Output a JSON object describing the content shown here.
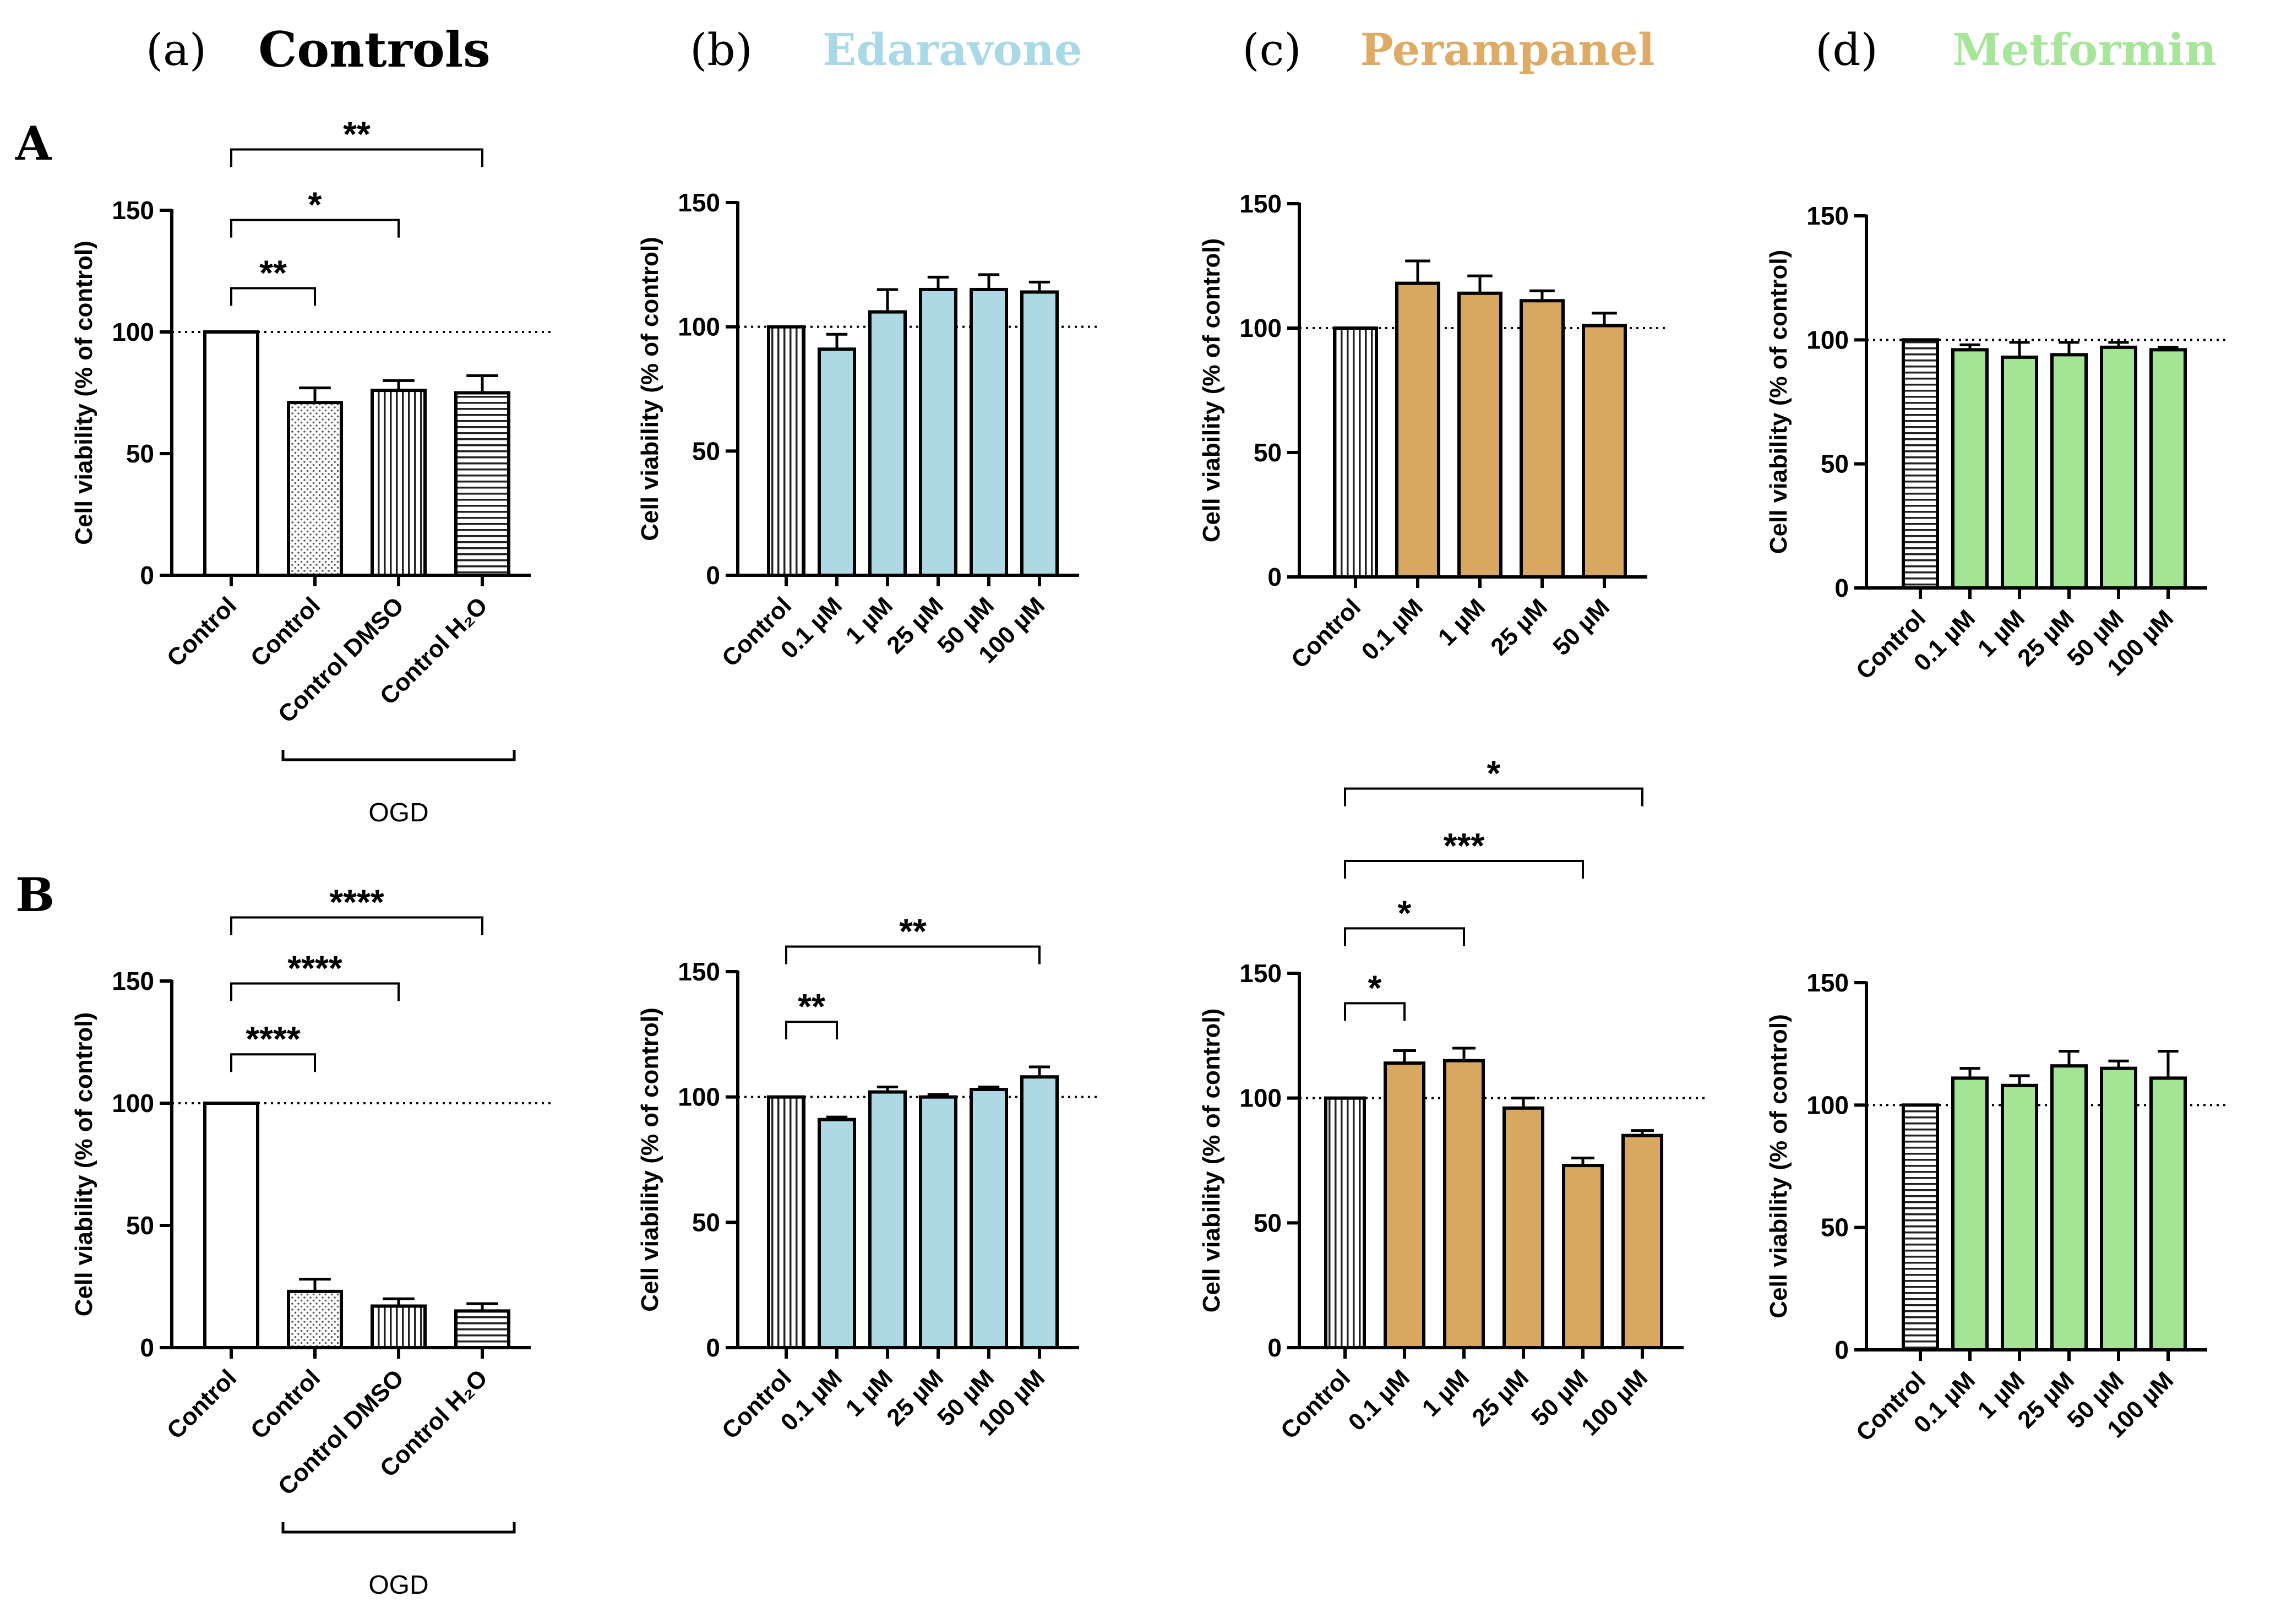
{
  "figure": {
    "row_labels": [
      "A",
      "B"
    ],
    "column_headers": [
      {
        "letter": "(a)",
        "title": "Controls",
        "color": "#000000"
      },
      {
        "letter": "(b)",
        "title": "Edaravone",
        "color": "#a9d8e6"
      },
      {
        "letter": "(c)",
        "title": "Perampanel",
        "color": "#deab66"
      },
      {
        "letter": "(d)",
        "title": "Metformin",
        "color": "#a7e59a"
      }
    ],
    "group_bracket_label": "OGD"
  },
  "chart_data": [
    {
      "id": "A-a",
      "type": "bar",
      "ylabel": "Cell viability (% of control)",
      "ylim": [
        0,
        150
      ],
      "yticks": [
        0,
        50,
        100,
        150
      ],
      "reference_line": 100,
      "categories": [
        "Control",
        "Control",
        "Control DMSO",
        "Control H₂O"
      ],
      "values": [
        100,
        71,
        76,
        75
      ],
      "errors": [
        0,
        6,
        4,
        7
      ],
      "fills": [
        "#ffffff",
        "dots",
        "vlines",
        "hlines"
      ],
      "group_bracket": {
        "from": 1,
        "to": 3,
        "label": "OGD"
      },
      "significance": [
        {
          "from": 0,
          "to": 1,
          "label": "**",
          "y": 118
        },
        {
          "from": 0,
          "to": 2,
          "label": "*",
          "y": 146
        },
        {
          "from": 0,
          "to": 3,
          "label": "**",
          "y": 175
        }
      ]
    },
    {
      "id": "A-b",
      "type": "bar",
      "ylabel": "Cell viability (% of control)",
      "ylim": [
        0,
        150
      ],
      "yticks": [
        0,
        50,
        100,
        150
      ],
      "reference_line": 100,
      "categories": [
        "Control",
        "0.1 µM",
        "1 µM",
        "25 µM",
        "50 µM",
        "100 µM"
      ],
      "values": [
        100,
        91,
        106,
        115,
        115,
        114
      ],
      "errors": [
        0,
        6,
        9,
        5,
        6,
        4
      ],
      "fills": [
        "vlines",
        "#aed8e4",
        "#aed8e4",
        "#aed8e4",
        "#aed8e4",
        "#aed8e4"
      ],
      "significance": []
    },
    {
      "id": "A-c",
      "type": "bar",
      "ylabel": "Cell viability (% of control)",
      "ylim": [
        0,
        150
      ],
      "yticks": [
        0,
        50,
        100,
        150
      ],
      "reference_line": 100,
      "categories": [
        "Control",
        "0.1 µM",
        "1 µM",
        "25 µM",
        "50 µM"
      ],
      "values": [
        100,
        118,
        114,
        111,
        101
      ],
      "errors": [
        0,
        9,
        7,
        4,
        5
      ],
      "fills": [
        "vlines",
        "#d8a860",
        "#d8a860",
        "#d8a860",
        "#d8a860"
      ],
      "significance": []
    },
    {
      "id": "A-d",
      "type": "bar",
      "ylabel": "Cell viability (% of control)",
      "ylim": [
        0,
        150
      ],
      "yticks": [
        0,
        50,
        100,
        150
      ],
      "reference_line": 100,
      "categories": [
        "Control",
        "0.1 µM",
        "1 µM",
        "25 µM",
        "50 µM",
        "100 µM"
      ],
      "values": [
        100,
        96,
        93,
        94,
        97,
        96
      ],
      "errors": [
        0,
        2,
        6,
        5,
        2,
        1
      ],
      "fills": [
        "hlines",
        "#a3e595",
        "#a3e595",
        "#a3e595",
        "#a3e595",
        "#a3e595"
      ],
      "significance": []
    },
    {
      "id": "B-a",
      "type": "bar",
      "ylabel": "Cell viability (% of control)",
      "ylim": [
        0,
        150
      ],
      "yticks": [
        0,
        50,
        100,
        150
      ],
      "reference_line": 100,
      "categories": [
        "Control",
        "Control",
        "Control DMSO",
        "Control H₂O"
      ],
      "values": [
        100,
        23,
        17,
        15
      ],
      "errors": [
        0,
        5,
        3,
        3
      ],
      "fills": [
        "#ffffff",
        "dots",
        "vlines",
        "hlines"
      ],
      "group_bracket": {
        "from": 1,
        "to": 3,
        "label": "OGD"
      },
      "significance": [
        {
          "from": 0,
          "to": 1,
          "label": "****",
          "y": 120
        },
        {
          "from": 0,
          "to": 2,
          "label": "****",
          "y": 149
        },
        {
          "from": 0,
          "to": 3,
          "label": "****",
          "y": 176
        }
      ]
    },
    {
      "id": "B-b",
      "type": "bar",
      "ylabel": "Cell viability (% of control)",
      "ylim": [
        0,
        150
      ],
      "yticks": [
        0,
        50,
        100,
        150
      ],
      "reference_line": 100,
      "categories": [
        "Control",
        "0.1 µM",
        "1 µM",
        "25 µM",
        "50 µM",
        "100 µM"
      ],
      "values": [
        100,
        91,
        102,
        100,
        103,
        108
      ],
      "errors": [
        0,
        1,
        2,
        1,
        1,
        4
      ],
      "fills": [
        "vlines",
        "#aed8e4",
        "#aed8e4",
        "#aed8e4",
        "#aed8e4",
        "#aed8e4"
      ],
      "significance": [
        {
          "from": 0,
          "to": 1,
          "label": "**",
          "y": 130
        },
        {
          "from": 0,
          "to": 5,
          "label": "**",
          "y": 160
        }
      ]
    },
    {
      "id": "B-c",
      "type": "bar",
      "ylabel": "Cell viability (% of control)",
      "ylim": [
        0,
        150
      ],
      "yticks": [
        0,
        50,
        100,
        150
      ],
      "reference_line": 100,
      "categories": [
        "Control",
        "0.1 µM",
        "1 µM",
        "25 µM",
        "50 µM",
        "100 µM"
      ],
      "values": [
        100,
        114,
        115,
        96,
        73,
        85
      ],
      "errors": [
        0,
        5,
        5,
        4,
        3,
        2
      ],
      "fills": [
        "vlines",
        "#d8a860",
        "#d8a860",
        "#d8a860",
        "#d8a860",
        "#d8a860"
      ],
      "significance": [
        {
          "from": 0,
          "to": 1,
          "label": "*",
          "y": 138
        },
        {
          "from": 0,
          "to": 2,
          "label": "*",
          "y": 168
        },
        {
          "from": 0,
          "to": 4,
          "label": "***",
          "y": 195
        },
        {
          "from": 0,
          "to": 5,
          "label": "*",
          "y": 224
        }
      ]
    },
    {
      "id": "B-d",
      "type": "bar",
      "ylabel": "Cell viability (% of control)",
      "ylim": [
        0,
        150
      ],
      "yticks": [
        0,
        50,
        100,
        150
      ],
      "reference_line": 100,
      "categories": [
        "Control",
        "0.1 µM",
        "1 µM",
        "25 µM",
        "50 µM",
        "100 µM"
      ],
      "values": [
        100,
        111,
        108,
        116,
        115,
        111
      ],
      "errors": [
        0,
        4,
        4,
        6,
        3,
        11
      ],
      "fills": [
        "hlines",
        "#a3e595",
        "#a3e595",
        "#a3e595",
        "#a3e595",
        "#a3e595"
      ],
      "significance": []
    }
  ]
}
